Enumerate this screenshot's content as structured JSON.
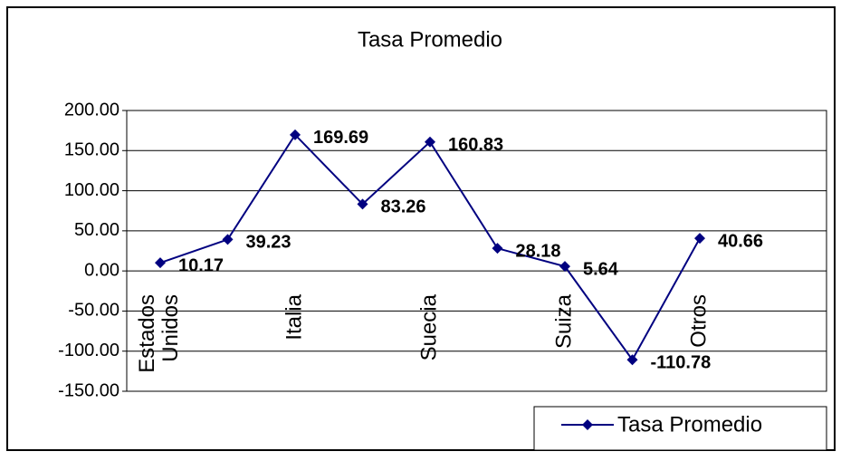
{
  "chart_data": {
    "type": "line",
    "title": "Tasa Promedio",
    "categories": [
      "Estados Unidos",
      null,
      "Italia",
      null,
      "Suecia",
      null,
      "Suiza",
      null,
      "Otros"
    ],
    "series": [
      {
        "name": "Tasa Promedio",
        "color": "#000080",
        "values": [
          10.17,
          39.23,
          169.69,
          83.26,
          160.83,
          28.18,
          5.64,
          -110.78,
          40.66
        ]
      }
    ],
    "ylim": [
      -150,
      200
    ],
    "yticks": [
      {
        "value": -150,
        "label": "-150.00"
      },
      {
        "value": -100,
        "label": "-100.00"
      },
      {
        "value": -50,
        "label": "-50.00"
      },
      {
        "value": 0,
        "label": "0.00"
      },
      {
        "value": 50,
        "label": "50.00"
      },
      {
        "value": 100,
        "label": "100.00"
      },
      {
        "value": 150,
        "label": "150.00"
      },
      {
        "value": 200,
        "label": "200.00"
      }
    ],
    "grid": true,
    "legend": "bottom-right"
  }
}
